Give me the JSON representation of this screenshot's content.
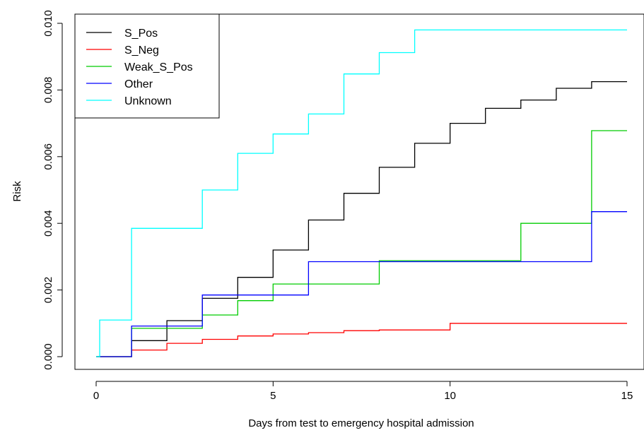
{
  "chart_data": {
    "type": "line",
    "step": true,
    "xlabel": "Days from test to emergency hospital admission",
    "ylabel": "Risk",
    "xlim": [
      0,
      15
    ],
    "ylim": [
      0,
      0.01
    ],
    "xticks": [
      0,
      5,
      10,
      15
    ],
    "yticks": [
      0,
      0.002,
      0.004,
      0.006,
      0.008,
      0.01
    ],
    "xtick_labels": [
      "0",
      "5",
      "10",
      "15"
    ],
    "ytick_labels": [
      "0.000",
      "0.002",
      "0.004",
      "0.006",
      "0.008",
      "0.010"
    ],
    "grid": false,
    "legend_position": "top-left",
    "series": [
      {
        "name": "S_Pos",
        "color": "#000000",
        "x": [
          0,
          1,
          2,
          3,
          4,
          5,
          6,
          7,
          8,
          9,
          10,
          11,
          12,
          13,
          14,
          15
        ],
        "y": [
          0,
          0.00048,
          0.00108,
          0.00175,
          0.00238,
          0.0032,
          0.0041,
          0.0049,
          0.00568,
          0.0064,
          0.007,
          0.00745,
          0.0077,
          0.00805,
          0.00825,
          0.00825
        ]
      },
      {
        "name": "S_Neg",
        "color": "#ff0000",
        "x": [
          0,
          1,
          2,
          3,
          4,
          5,
          6,
          7,
          8,
          10,
          15
        ],
        "y": [
          0,
          0.0002,
          0.0004,
          0.00052,
          0.00062,
          0.00068,
          0.00072,
          0.00078,
          0.0008,
          0.001,
          0.001
        ]
      },
      {
        "name": "Weak_S_Pos",
        "color": "#00cc00",
        "x": [
          0,
          1,
          3,
          4,
          5,
          8,
          12,
          14,
          15
        ],
        "y": [
          0,
          0.00085,
          0.00125,
          0.00168,
          0.00218,
          0.00288,
          0.004,
          0.00678,
          0.00678
        ]
      },
      {
        "name": "Other",
        "color": "#0000ff",
        "x": [
          0,
          1,
          3,
          6,
          14,
          15
        ],
        "y": [
          0,
          0.00092,
          0.00185,
          0.00285,
          0.00435,
          0.00435
        ]
      },
      {
        "name": "Unknown",
        "color": "#00ffff",
        "x": [
          0,
          0.1,
          1,
          3,
          4,
          5,
          6,
          7,
          8,
          9,
          15
        ],
        "y": [
          0,
          0.0011,
          0.00385,
          0.005,
          0.0061,
          0.00668,
          0.00728,
          0.00848,
          0.00912,
          0.0098,
          0.0098
        ]
      }
    ]
  }
}
